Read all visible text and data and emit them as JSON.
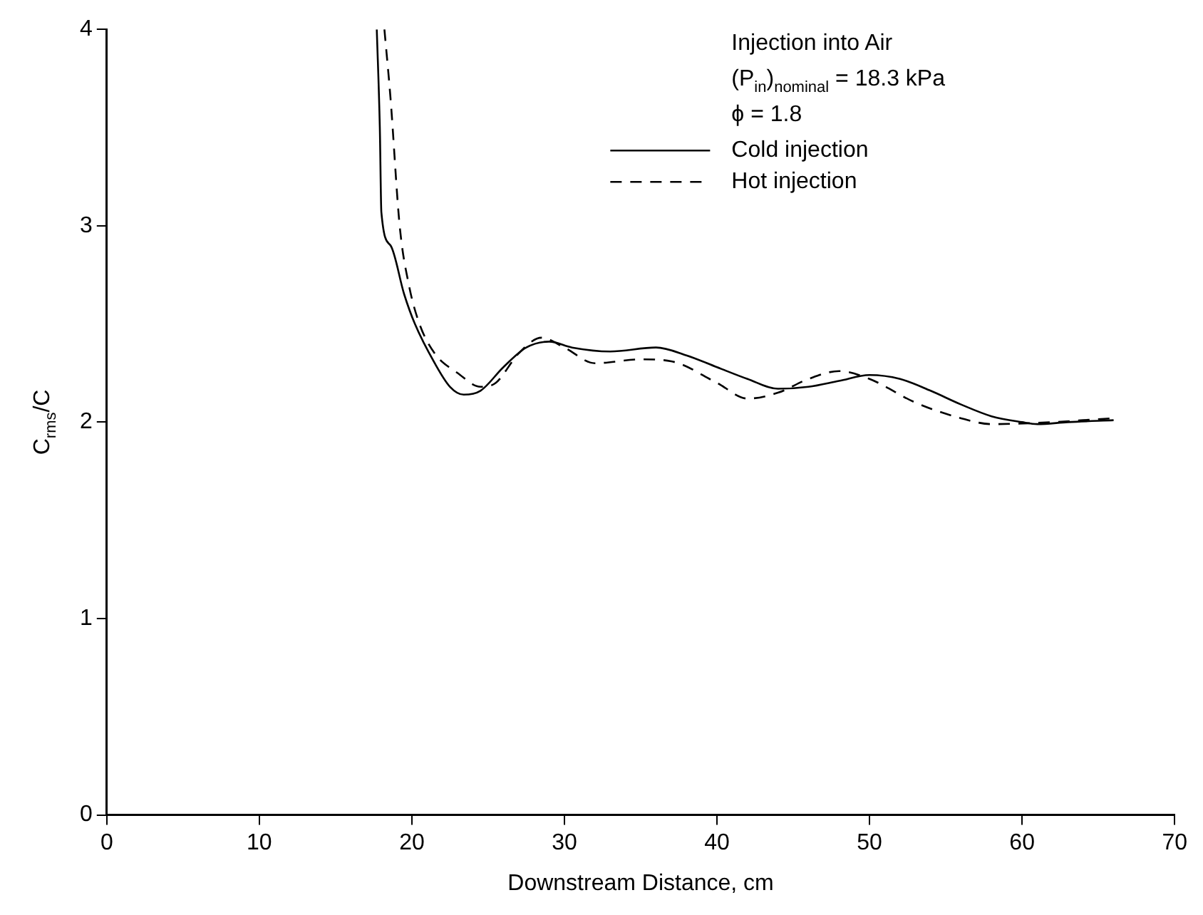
{
  "chart_data": {
    "type": "line",
    "xlabel": "Downstream Distance, cm",
    "ylabel": "C$_{rms}$/C",
    "annotations": [
      "Injection into Air",
      "(P$_{in}$)$_{nominal}$ = 18.3 kPa",
      "ϕ = 1.8"
    ],
    "xlim": [
      0,
      70
    ],
    "xticks": [
      0,
      10,
      20,
      30,
      40,
      50,
      60,
      70
    ],
    "ylim": [
      0,
      4
    ],
    "yticks": [
      0,
      1,
      2,
      3,
      4
    ],
    "grid": false,
    "legend": "top right",
    "series": [
      {
        "name": "Cold injection",
        "color": "#000000",
        "line_style": "solid",
        "x": [
          17.7,
          17.9,
          18.0,
          18.6,
          19.5,
          20.2,
          21.5,
          22.5,
          23.4,
          24.5,
          26,
          27.5,
          29,
          30.5,
          33,
          36,
          38,
          40,
          42,
          44,
          46,
          48,
          50,
          52,
          54,
          56,
          58,
          60,
          61,
          63,
          66
        ],
        "values": [
          4,
          3.5,
          3.07,
          2.9,
          2.65,
          2.5,
          2.3,
          2.18,
          2.14,
          2.16,
          2.28,
          2.38,
          2.41,
          2.38,
          2.36,
          2.38,
          2.34,
          2.28,
          2.22,
          2.17,
          2.18,
          2.21,
          2.24,
          2.22,
          2.16,
          2.09,
          2.03,
          2.0,
          1.99,
          2.0,
          2.01
        ]
      },
      {
        "name": "Hot injection",
        "color": "#000000",
        "line_style": "dashed",
        "x": [
          18.2,
          18.6,
          19.2,
          19.8,
          20.5,
          21.5,
          23,
          24.5,
          25.5,
          27,
          28.5,
          30,
          32,
          35,
          37,
          40,
          42,
          44,
          46,
          48,
          50,
          53,
          56,
          58,
          62,
          64,
          66
        ],
        "values": [
          4,
          3.65,
          3.0,
          2.7,
          2.5,
          2.35,
          2.25,
          2.18,
          2.2,
          2.35,
          2.43,
          2.38,
          2.3,
          2.32,
          2.31,
          2.2,
          2.12,
          2.15,
          2.22,
          2.26,
          2.22,
          2.1,
          2.02,
          1.99,
          2.0,
          2.01,
          2.02
        ]
      }
    ]
  }
}
